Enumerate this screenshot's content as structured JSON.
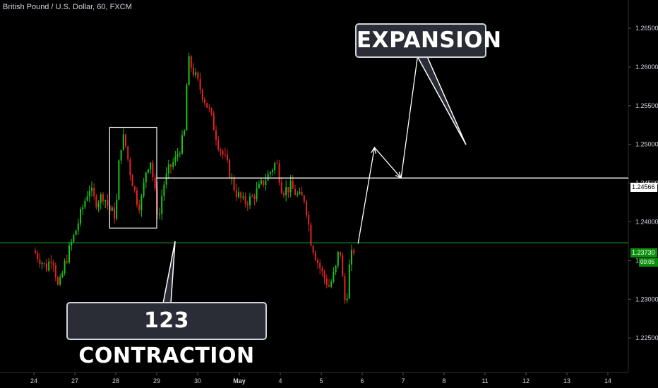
{
  "symbol": "British Pound / U.S. Dollar, 60, FXCM",
  "callouts": {
    "expansion": "EXPANSION",
    "contraction": "123 CONTRACTION"
  },
  "price_tags": {
    "level": "1.24566",
    "current": "1.23730",
    "timer": "00:05"
  },
  "colors": {
    "background": "#000000",
    "bull": "#18c418",
    "bear": "#e52222",
    "annotation": "#ffffff",
    "current_line": "#18a818",
    "axis_text": "#d1d4dc"
  },
  "chart_data": {
    "type": "candlestick",
    "title": "British Pound / U.S. Dollar, 60, FXCM",
    "ylim": [
      1.2225,
      1.2675
    ],
    "y_ticks": [
      "1.22500",
      "1.23000",
      "1.23500",
      "1.24000",
      "1.24500",
      "1.25000",
      "1.25500",
      "1.26000",
      "1.26500"
    ],
    "y_tick_values": [
      1.225,
      1.23,
      1.235,
      1.24,
      1.245,
      1.25,
      1.255,
      1.26,
      1.265
    ],
    "x_ticks": [
      "24",
      "27",
      "28",
      "29",
      "30",
      "May",
      "4",
      "5",
      "6",
      "7",
      "8",
      "11",
      "12",
      "13",
      "14"
    ],
    "x_tick_index": [
      0,
      1,
      2,
      3,
      4,
      5,
      6,
      7,
      8,
      9,
      10,
      11,
      12,
      13,
      14
    ],
    "grid": false,
    "horizontal_lines": [
      {
        "value": 1.24566,
        "label": "1.24566",
        "color": "#ffffff"
      },
      {
        "value": 1.2373,
        "label": "1.23730",
        "color": "#18a818"
      }
    ],
    "price_path": [
      [
        0.0,
        1.2362
      ],
      [
        0.15,
        1.2352
      ],
      [
        0.3,
        1.234
      ],
      [
        0.45,
        1.2358
      ],
      [
        0.6,
        1.2312
      ],
      [
        0.75,
        1.2345
      ],
      [
        0.9,
        1.237
      ],
      [
        1.0,
        1.2385
      ],
      [
        1.2,
        1.242
      ],
      [
        1.35,
        1.2445
      ],
      [
        1.5,
        1.2425
      ],
      [
        1.7,
        1.2435
      ],
      [
        1.85,
        1.2415
      ],
      [
        2.0,
        1.2408
      ],
      [
        2.1,
        1.2495
      ],
      [
        2.2,
        1.251
      ],
      [
        2.35,
        1.2465
      ],
      [
        2.5,
        1.243
      ],
      [
        2.6,
        1.242
      ],
      [
        2.75,
        1.247
      ],
      [
        2.85,
        1.248
      ],
      [
        2.95,
        1.244
      ],
      [
        3.05,
        1.2402
      ],
      [
        3.15,
        1.2445
      ],
      [
        3.3,
        1.2468
      ],
      [
        3.45,
        1.248
      ],
      [
        3.6,
        1.25
      ],
      [
        3.7,
        1.252
      ],
      [
        3.75,
        1.261
      ],
      [
        3.85,
        1.26
      ],
      [
        4.0,
        1.258
      ],
      [
        4.15,
        1.256
      ],
      [
        4.3,
        1.254
      ],
      [
        4.5,
        1.25
      ],
      [
        4.7,
        1.2475
      ],
      [
        4.9,
        1.244
      ],
      [
        5.1,
        1.2425
      ],
      [
        5.3,
        1.243
      ],
      [
        5.5,
        1.2445
      ],
      [
        5.7,
        1.246
      ],
      [
        5.9,
        1.2478
      ],
      [
        6.05,
        1.244
      ],
      [
        6.25,
        1.2445
      ],
      [
        6.45,
        1.2432
      ],
      [
        6.6,
        1.243
      ],
      [
        6.75,
        1.2375
      ],
      [
        6.9,
        1.235
      ],
      [
        7.05,
        1.233
      ],
      [
        7.2,
        1.2316
      ],
      [
        7.35,
        1.2338
      ],
      [
        7.45,
        1.237
      ],
      [
        7.55,
        1.2308
      ],
      [
        7.6,
        1.229
      ],
      [
        7.7,
        1.235
      ],
      [
        7.85,
        1.2372
      ]
    ],
    "annotations": {
      "contraction_box": {
        "x": [
          1.85,
          3.0
        ],
        "y": [
          1.2392,
          1.2522
        ]
      },
      "projection_path": [
        [
          7.9,
          1.2372
        ],
        [
          8.3,
          1.2496
        ],
        [
          8.95,
          1.24566
        ],
        [
          9.4,
          1.2632
        ]
      ]
    }
  }
}
